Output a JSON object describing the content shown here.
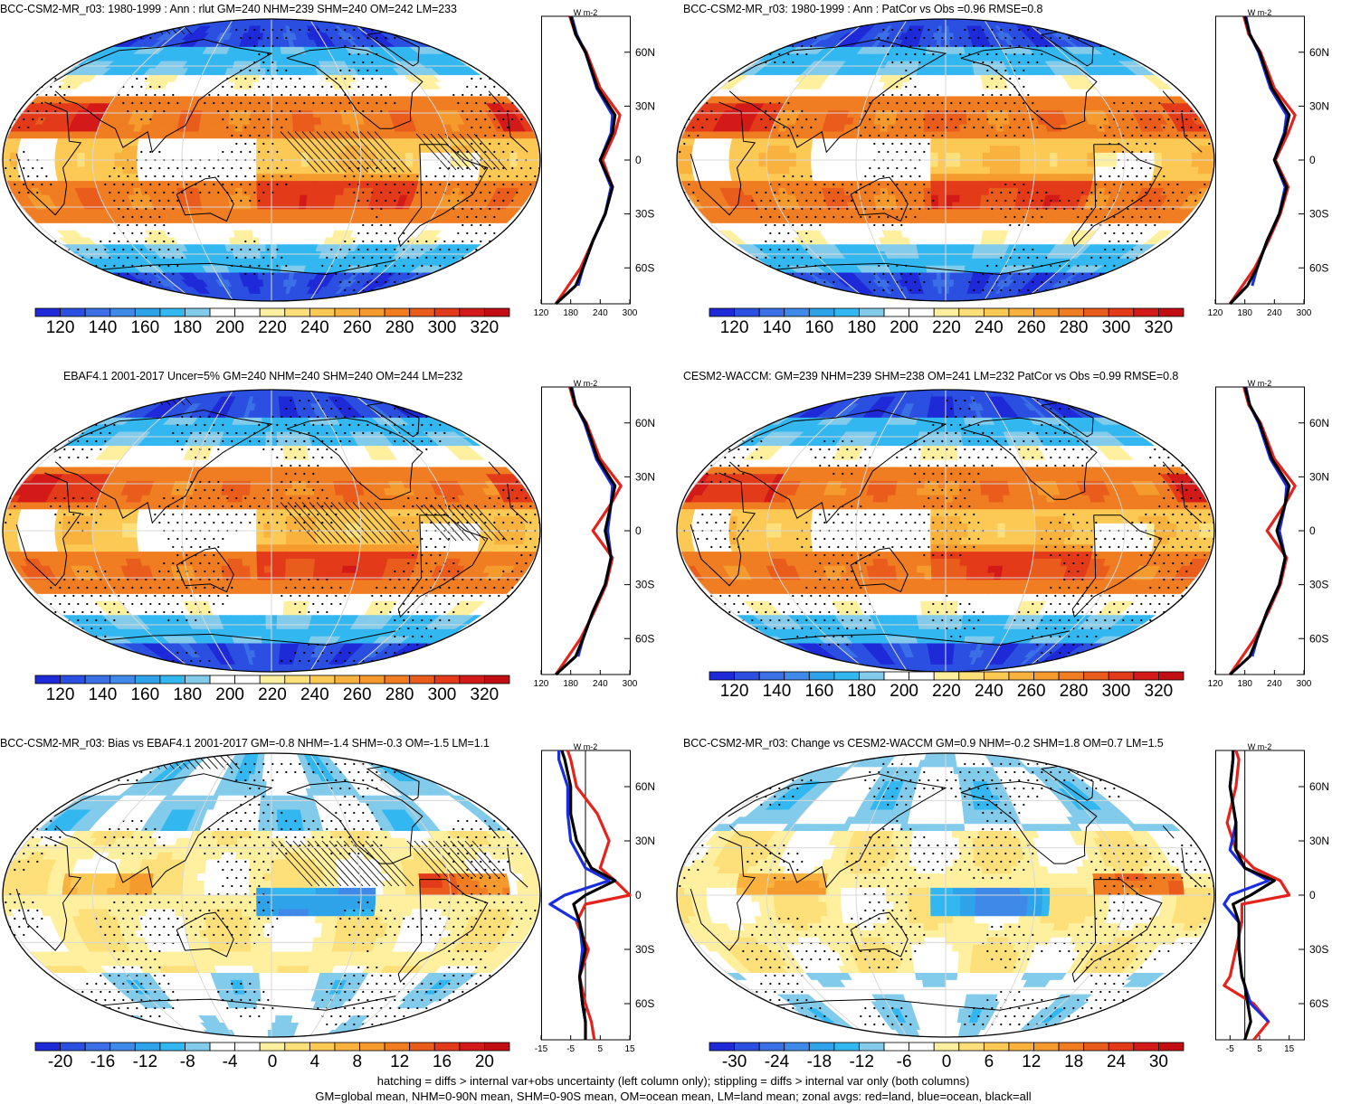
{
  "panels": [
    {
      "title": "BCC-CSM2-MR_r03: 1980-1999 : Ann : rlut GM=240 NHM=239 SHM=240 OM=242 LM=233",
      "kind": "abs",
      "hatching": true,
      "colorbar_labels": [
        "120",
        "140",
        "160",
        "180",
        "200",
        "220",
        "240",
        "260",
        "280",
        "300",
        "320"
      ],
      "zonal_xticks": [
        "120",
        "180",
        "240",
        "300"
      ],
      "zonal_lat_labels": [
        "60N",
        "30N",
        "0",
        "30S",
        "60S"
      ],
      "zonal_units": "W m-2"
    },
    {
      "title": "BCC-CSM2-MR_r03: 1980-1999 : Ann : PatCor vs Obs =0.96 RMSE=0.8",
      "kind": "abs",
      "hatching": false,
      "colorbar_labels": [
        "120",
        "140",
        "160",
        "180",
        "200",
        "220",
        "240",
        "260",
        "280",
        "300",
        "320"
      ],
      "zonal_xticks": [
        "120",
        "180",
        "240",
        "300"
      ],
      "zonal_lat_labels": [
        "60N",
        "30N",
        "0",
        "30S",
        "60S"
      ],
      "zonal_units": "W m-2"
    },
    {
      "title": "EBAF4.1 2001-2017 Uncer=5% GM=240 NHM=240 SHM=240 OM=244 LM=232",
      "kind": "abs",
      "hatching": true,
      "colorbar_labels": [
        "120",
        "140",
        "160",
        "180",
        "200",
        "220",
        "240",
        "260",
        "280",
        "300",
        "320"
      ],
      "zonal_xticks": [
        "120",
        "180",
        "240",
        "300"
      ],
      "zonal_lat_labels": [
        "60N",
        "30N",
        "0",
        "30S",
        "60S"
      ],
      "zonal_units": "W m-2"
    },
    {
      "title": "CESM2-WACCM: GM=239 NHM=239 SHM=238 OM=241 LM=232 PatCor vs Obs =0.99 RMSE=0.8",
      "kind": "abs",
      "hatching": false,
      "colorbar_labels": [
        "120",
        "140",
        "160",
        "180",
        "200",
        "220",
        "240",
        "260",
        "280",
        "300",
        "320"
      ],
      "zonal_xticks": [
        "120",
        "180",
        "240",
        "300"
      ],
      "zonal_lat_labels": [
        "60N",
        "30N",
        "0",
        "30S",
        "60S"
      ],
      "zonal_units": "W m-2"
    },
    {
      "title": "BCC-CSM2-MR_r03: Bias vs EBAF4.1 2001-2017 GM=-0.8 NHM=-1.4 SHM=-0.3 OM=-1.5 LM=1.1",
      "kind": "diff",
      "hatching": true,
      "colorbar_labels": [
        "-20",
        "-16",
        "-12",
        "-8",
        "-4",
        "0",
        "4",
        "8",
        "12",
        "16",
        "20"
      ],
      "zonal_xticks": [
        "-15",
        "-5",
        "5",
        "15"
      ],
      "zonal_lat_labels": [
        "60N",
        "30N",
        "0",
        "30S",
        "60S"
      ],
      "zonal_units": "W m-2"
    },
    {
      "title": "BCC-CSM2-MR_r03: Change vs CESM2-WACCM GM=0.9 NHM=-0.2 SHM=1.8 OM=0.7 LM=1.5",
      "kind": "diff",
      "hatching": false,
      "colorbar_labels": [
        "-30",
        "-24",
        "-18",
        "-12",
        "-6",
        "0",
        "6",
        "12",
        "18",
        "24",
        "30"
      ],
      "zonal_xticks": [
        "-5",
        "5",
        "15"
      ],
      "zonal_lat_labels": [
        "60N",
        "30N",
        "0",
        "30S",
        "60S"
      ],
      "zonal_units": "W m-2"
    }
  ],
  "footer": {
    "line1": "hatching = diffs > internal var+obs uncertainty (left column only); stippling = diffs > internal var only (both columns)",
    "line2": "GM=global mean, NHM=0-90N mean, SHM=0-90S mean, OM=ocean mean, LM=land mean; zonal avgs: red=land, blue=ocean, black=all"
  },
  "palette": {
    "abs": [
      "#1e2ad8",
      "#2b4fe0",
      "#3a6fe6",
      "#3f8ae8",
      "#2ea3ea",
      "#33b7f0",
      "#82cbeb",
      "#ffffff",
      "#ffffff",
      "#fff0a0",
      "#fde07a",
      "#fcc954",
      "#f9b23e",
      "#f59a2c",
      "#f07d22",
      "#ea5c1c",
      "#e33a1a",
      "#d41a18",
      "#c20d12"
    ],
    "diff": [
      "#1e2ad8",
      "#2b4fe0",
      "#3a6fe6",
      "#3f8ae8",
      "#2ea3ea",
      "#33b7f0",
      "#82cbeb",
      "#ffffff",
      "#ffffff",
      "#fff0a0",
      "#fde07a",
      "#fcc954",
      "#f9b23e",
      "#f59a2c",
      "#f07d22",
      "#ea5c1c",
      "#e33a1a",
      "#d41a18",
      "#c20d12"
    ],
    "land": "#e5231d",
    "ocean": "#1a2ee0",
    "all": "#000000"
  },
  "chart_data": [
    {
      "type": "heatmap",
      "title": "BCC-CSM2-MR_r03: 1980-1999 : Ann : rlut GM=240 NHM=239 SHM=240 OM=242 LM=233",
      "colorbar_range": [
        120,
        320
      ],
      "zonal_profile": {
        "xlim": [
          120,
          300
        ],
        "ylim": [
          -80,
          80
        ],
        "lat": [
          -80,
          -70,
          -60,
          -45,
          -30,
          -15,
          0,
          15,
          25,
          40,
          60,
          70,
          80
        ],
        "all": [
          150,
          190,
          205,
          225,
          250,
          265,
          240,
          265,
          270,
          235,
          210,
          190,
          180
        ],
        "land": [
          150,
          175,
          200,
          225,
          250,
          265,
          245,
          270,
          280,
          240,
          212,
          190,
          178
        ],
        "ocean": [
          null,
          195,
          205,
          225,
          250,
          262,
          240,
          262,
          265,
          233,
          210,
          192,
          182
        ]
      }
    },
    {
      "type": "heatmap",
      "title": "BCC-CSM2-MR_r03: 1980-1999 : Ann : PatCor vs Obs =0.96 RMSE=0.8",
      "colorbar_range": [
        120,
        320
      ],
      "zonal_profile": {
        "xlim": [
          120,
          300
        ],
        "ylim": [
          -80,
          80
        ],
        "lat": [
          -80,
          -70,
          -60,
          -45,
          -30,
          -15,
          0,
          15,
          25,
          40,
          60,
          70,
          80
        ],
        "all": [
          150,
          185,
          205,
          225,
          250,
          265,
          240,
          262,
          270,
          235,
          210,
          190,
          180
        ],
        "land": [
          150,
          175,
          200,
          228,
          252,
          268,
          242,
          268,
          282,
          240,
          212,
          188,
          178
        ],
        "ocean": [
          null,
          195,
          205,
          225,
          250,
          262,
          240,
          260,
          265,
          232,
          208,
          190,
          182
        ]
      }
    },
    {
      "type": "heatmap",
      "title": "EBAF4.1 2001-2017 Uncer=5% GM=240 NHM=240 SHM=240 OM=244 LM=232",
      "colorbar_range": [
        120,
        320
      ],
      "zonal_profile": {
        "xlim": [
          120,
          300
        ],
        "ylim": [
          -80,
          80
        ],
        "lat": [
          -80,
          -70,
          -60,
          -45,
          -30,
          -15,
          0,
          15,
          25,
          40,
          60,
          70,
          80
        ],
        "all": [
          150,
          190,
          205,
          225,
          250,
          262,
          250,
          262,
          270,
          235,
          210,
          190,
          180
        ],
        "land": [
          150,
          175,
          200,
          228,
          252,
          265,
          225,
          262,
          282,
          240,
          212,
          188,
          178
        ],
        "ocean": [
          null,
          195,
          205,
          225,
          250,
          262,
          255,
          262,
          265,
          232,
          208,
          190,
          182
        ]
      }
    },
    {
      "type": "heatmap",
      "title": "CESM2-WACCM: GM=239 NHM=239 SHM=238 OM=241 LM=232 PatCor vs Obs =0.99 RMSE=0.8",
      "colorbar_range": [
        120,
        320
      ],
      "zonal_profile": {
        "xlim": [
          120,
          300
        ],
        "ylim": [
          -80,
          80
        ],
        "lat": [
          -80,
          -70,
          -60,
          -45,
          -30,
          -15,
          0,
          15,
          25,
          40,
          60,
          70,
          80
        ],
        "all": [
          150,
          190,
          205,
          225,
          250,
          262,
          245,
          262,
          270,
          235,
          210,
          190,
          180
        ],
        "land": [
          150,
          175,
          200,
          228,
          252,
          265,
          225,
          262,
          282,
          240,
          212,
          188,
          178
        ],
        "ocean": [
          null,
          195,
          205,
          225,
          250,
          262,
          250,
          262,
          265,
          232,
          208,
          190,
          182
        ]
      }
    },
    {
      "type": "heatmap",
      "title": "BCC-CSM2-MR_r03: Bias vs EBAF4.1 2001-2017 GM=-0.8 NHM=-1.4 SHM=-0.3 OM=-1.5 LM=1.1",
      "colorbar_range": [
        -20,
        20
      ],
      "zonal_profile": {
        "xlim": [
          -15,
          15
        ],
        "ylim": [
          -80,
          80
        ],
        "lat": [
          -80,
          -70,
          -60,
          -45,
          -30,
          -15,
          -5,
          0,
          8,
          15,
          30,
          45,
          60,
          75,
          80
        ],
        "all": [
          0,
          0,
          -1,
          -2,
          0,
          -2,
          -4,
          0,
          10,
          2,
          -3,
          -5,
          -5,
          -7,
          -8
        ],
        "land": [
          3,
          2,
          0,
          -2,
          1,
          -3,
          0,
          15,
          10,
          5,
          8,
          4,
          -3,
          -5,
          -6
        ],
        "ocean": [
          null,
          0,
          -1,
          -2,
          -1,
          -2,
          -12,
          -7,
          8,
          0,
          -5,
          -6,
          -6,
          -9,
          -9
        ]
      }
    },
    {
      "type": "heatmap",
      "title": "BCC-CSM2-MR_r03: Change vs CESM2-WACCM GM=0.9 NHM=-0.2 SHM=1.8 OM=0.7 LM=1.5",
      "colorbar_range": [
        -30,
        30
      ],
      "zonal_profile": {
        "xlim": [
          -10,
          20
        ],
        "ylim": [
          -80,
          80
        ],
        "lat": [
          -80,
          -70,
          -60,
          -50,
          -45,
          -30,
          -15,
          -5,
          0,
          8,
          15,
          25,
          40,
          60,
          75,
          80
        ],
        "all": [
          0,
          2,
          1,
          0,
          -1,
          -2,
          -2,
          -4,
          2,
          10,
          0,
          -3,
          -3,
          -5,
          -4,
          -4
        ],
        "land": [
          3,
          8,
          3,
          -7,
          -5,
          -3,
          -1,
          -1,
          15,
          12,
          3,
          -3,
          -6,
          -3,
          -2,
          -3
        ],
        "ocean": [
          null,
          8,
          2,
          0,
          -1,
          -2,
          -2,
          -7,
          -5,
          8,
          0,
          -5,
          -3,
          -5,
          -4,
          -4
        ]
      }
    }
  ]
}
